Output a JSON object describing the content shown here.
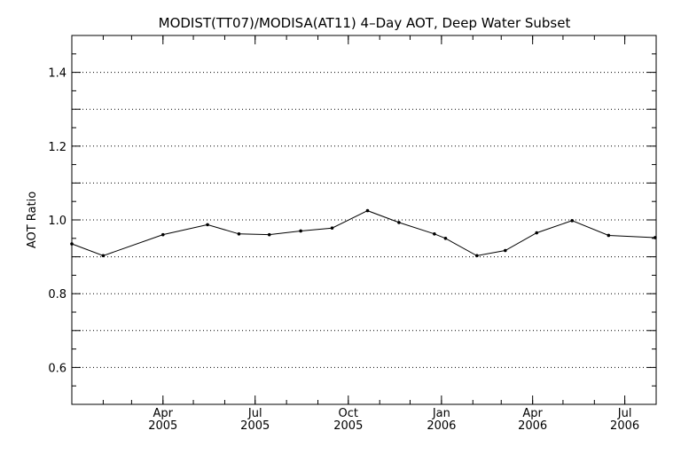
{
  "chart_data": {
    "type": "line",
    "title": "MODIST(TT07)/MODISA(AT11) 4–Day AOT, Deep Water Subset",
    "xlabel": "",
    "ylabel": "AOT Ratio",
    "ylim": [
      0.5,
      1.5
    ],
    "xlim": [
      "2005-01-01",
      "2006-08-01"
    ],
    "yticks": [
      0.6,
      0.8,
      1.0,
      1.2,
      1.4
    ],
    "ytick_labels": [
      "0.6",
      "0.8",
      "1.0",
      "1.2",
      "1.4"
    ],
    "xticks": [
      {
        "date": "2005-04-01",
        "month": "Apr",
        "year": "2005"
      },
      {
        "date": "2005-07-01",
        "month": "Jul",
        "year": "2005"
      },
      {
        "date": "2005-10-01",
        "month": "Oct",
        "year": "2005"
      },
      {
        "date": "2006-01-01",
        "month": "Jan",
        "year": "2006"
      },
      {
        "date": "2006-04-01",
        "month": "Apr",
        "year": "2006"
      },
      {
        "date": "2006-07-01",
        "month": "Jul",
        "year": "2006"
      }
    ],
    "grid": true,
    "series": [
      {
        "x": [
          "2005-01-01",
          "2005-02-01",
          "2005-04-01",
          "2005-05-15",
          "2005-06-15",
          "2005-07-15",
          "2005-08-15",
          "2005-09-15",
          "2005-10-20",
          "2005-11-20",
          "2005-12-25",
          "2006-01-05",
          "2006-02-05",
          "2006-03-05",
          "2006-04-05",
          "2006-05-10",
          "2006-06-15",
          "2006-07-31"
        ],
        "y": [
          0.935,
          0.903,
          0.96,
          0.987,
          0.962,
          0.96,
          0.97,
          0.978,
          1.025,
          0.993,
          0.962,
          0.95,
          0.903,
          0.917,
          0.965,
          0.998,
          0.958,
          0.952
        ]
      }
    ]
  }
}
